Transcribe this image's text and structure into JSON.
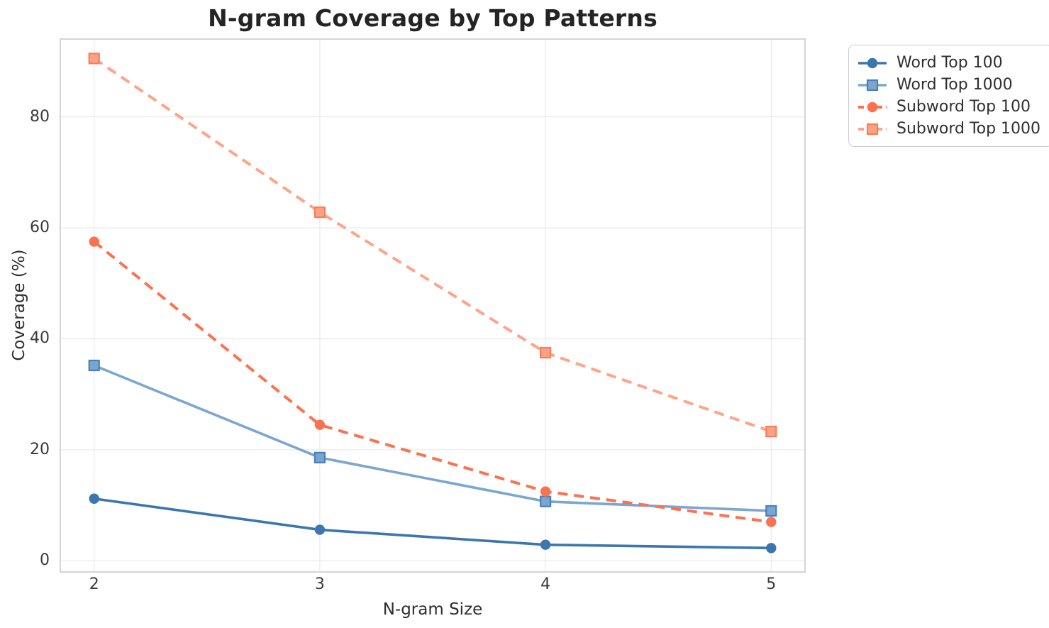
{
  "chart_data": {
    "type": "line",
    "title": "N-gram Coverage by Top Patterns",
    "xlabel": "N-gram Size",
    "ylabel": "Coverage (%)",
    "x": [
      2,
      3,
      4,
      5
    ],
    "x_ticks": [
      2,
      3,
      4,
      5
    ],
    "y_ticks": [
      0,
      20,
      40,
      60,
      80
    ],
    "xlim": [
      1.85,
      5.15
    ],
    "ylim": [
      -2,
      94
    ],
    "grid": true,
    "legend_position": "outside upper right",
    "series": [
      {
        "name": "Word Top 100",
        "values": [
          11.2,
          5.6,
          2.9,
          2.3
        ],
        "color": "#3c76af",
        "marker_fill": "#3c76af",
        "marker_edge": "#3c76af",
        "line_style": "solid",
        "marker": "circle"
      },
      {
        "name": "Word Top 1000",
        "values": [
          35.2,
          18.6,
          10.7,
          9.0
        ],
        "color": "#7aa6d1",
        "marker_fill": "#79a5d0",
        "marker_edge": "#4a80b5",
        "line_style": "solid",
        "marker": "square"
      },
      {
        "name": "Subword Top 100",
        "values": [
          57.5,
          24.5,
          12.5,
          7.0
        ],
        "color": "#fc7150",
        "marker_fill": "#fc7150",
        "marker_edge": "#fc7150",
        "line_style": "dashed",
        "marker": "circle"
      },
      {
        "name": "Subword Top 1000",
        "values": [
          90.5,
          62.8,
          37.5,
          23.3
        ],
        "color": "#fea489",
        "marker_fill": "#fda287",
        "marker_edge": "#fc7c59",
        "line_style": "dashed",
        "marker": "square"
      }
    ],
    "style": {
      "grid_color": "#ebebeb",
      "spine_color": "#d4d4d4",
      "background": "#ffffff"
    }
  }
}
